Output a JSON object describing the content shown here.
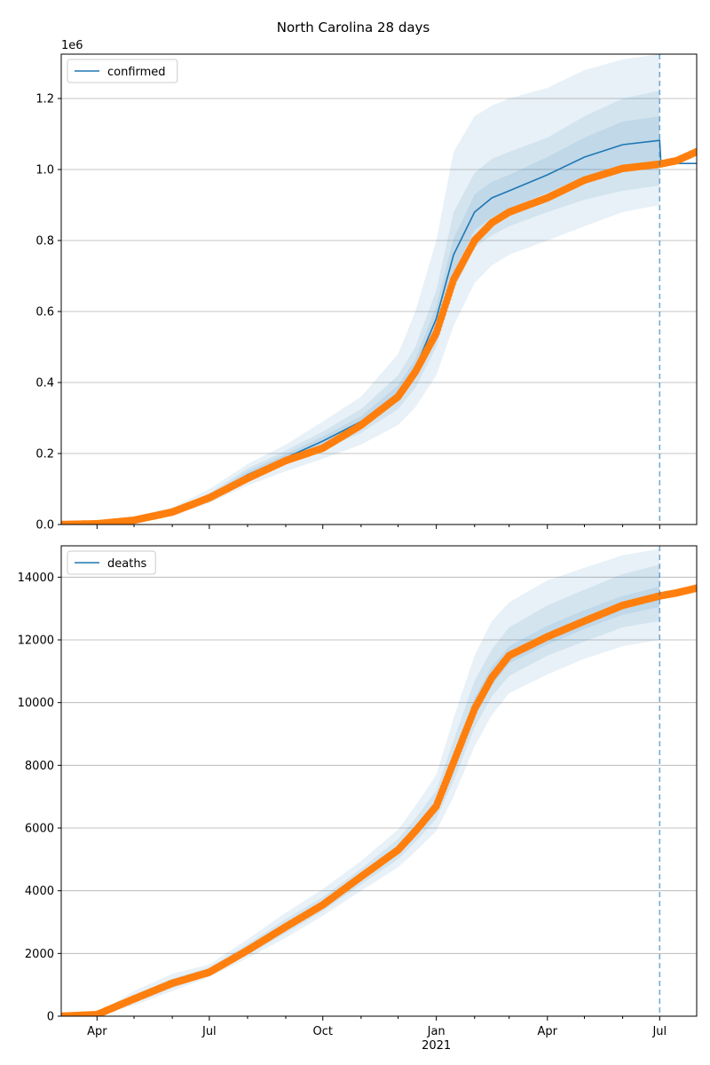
{
  "title": "North Carolina 28 days",
  "chart_data": [
    {
      "type": "line",
      "legend": "confirmed",
      "legend_position": "top-left",
      "grid": "horizontal",
      "offset_label": "1e6",
      "y_tick_labels": [
        "0.0",
        "0.2",
        "0.4",
        "0.6",
        "0.8",
        "1.0",
        "1.2"
      ],
      "y_ticks": [
        0,
        200000,
        400000,
        600000,
        800000,
        1000000,
        1200000
      ],
      "ylim": [
        0,
        1325000
      ],
      "xlim": [
        "2020-03-03",
        "2021-07-31"
      ],
      "forecast_start": "2021-07-01",
      "series": [
        {
          "name": "confirmed",
          "role": "model median",
          "color": "#1f77b4",
          "x": [
            "2020-03-03",
            "2020-04-01",
            "2020-05-01",
            "2020-06-01",
            "2020-07-01",
            "2020-08-01",
            "2020-09-01",
            "2020-10-01",
            "2020-11-01",
            "2020-12-01",
            "2020-12-15",
            "2021-01-01",
            "2021-01-15",
            "2021-02-01",
            "2021-02-15",
            "2021-03-01",
            "2021-04-01",
            "2021-05-01",
            "2021-06-01",
            "2021-07-01",
            "2021-07-02",
            "2021-07-31"
          ],
          "y": [
            500,
            6000,
            15000,
            35000,
            78000,
            140000,
            188000,
            235000,
            290000,
            370000,
            440000,
            580000,
            760000,
            880000,
            920000,
            940000,
            985000,
            1035000,
            1070000,
            1082000,
            1017000,
            1017000
          ]
        },
        {
          "name": "",
          "role": "observed",
          "color": "#ff7f0e",
          "x": [
            "2020-03-03",
            "2020-04-01",
            "2020-05-01",
            "2020-06-01",
            "2020-07-01",
            "2020-08-01",
            "2020-09-01",
            "2020-10-01",
            "2020-11-01",
            "2020-12-01",
            "2020-12-15",
            "2021-01-01",
            "2021-01-15",
            "2021-02-01",
            "2021-02-15",
            "2021-03-01",
            "2021-04-01",
            "2021-05-01",
            "2021-06-01",
            "2021-07-01",
            "2021-07-15",
            "2021-07-31"
          ],
          "y": [
            0,
            2000,
            12000,
            35000,
            75000,
            130000,
            180000,
            215000,
            280000,
            360000,
            430000,
            540000,
            690000,
            800000,
            850000,
            880000,
            920000,
            970000,
            1003000,
            1015000,
            1025000,
            1050000
          ]
        }
      ],
      "bands": {
        "x": [
          "2020-03-03",
          "2020-04-01",
          "2020-05-01",
          "2020-06-01",
          "2020-07-01",
          "2020-08-01",
          "2020-09-01",
          "2020-10-01",
          "2020-11-01",
          "2020-12-01",
          "2020-12-15",
          "2021-01-01",
          "2021-01-15",
          "2021-02-01",
          "2021-02-15",
          "2021-03-01",
          "2021-04-01",
          "2021-05-01",
          "2021-06-01",
          "2021-07-01"
        ],
        "bounds": [
          {
            "lower": [
              0,
              4000,
              10000,
              25000,
              60000,
              110000,
              150000,
              185000,
              225000,
              280000,
              330000,
              420000,
              560000,
              680000,
              730000,
              760000,
              800000,
              840000,
              880000,
              900000
            ],
            "upper": [
              1000,
              8000,
              22000,
              48000,
              100000,
              170000,
              225000,
              290000,
              360000,
              480000,
              600000,
              800000,
              1050000,
              1150000,
              1180000,
              1200000,
              1230000,
              1280000,
              1310000,
              1325000
            ]
          },
          {
            "lower": [
              0,
              5000,
              12000,
              30000,
              68000,
              122000,
              168000,
              210000,
              258000,
              325000,
              385000,
              500000,
              660000,
              780000,
              815000,
              840000,
              880000,
              915000,
              940000,
              955000
            ],
            "upper": [
              800,
              7000,
              18000,
              42000,
              88000,
              158000,
              208000,
              262000,
              325000,
              420000,
              500000,
              660000,
              880000,
              990000,
              1030000,
              1050000,
              1090000,
              1150000,
              1200000,
              1222000
            ]
          },
          {
            "lower": [
              200,
              5500,
              13500,
              32000,
              72000,
              130000,
              178000,
              222000,
              275000,
              348000,
              415000,
              545000,
              710000,
              830000,
              865000,
              890000,
              935000,
              980000,
              1005000,
              1020000
            ],
            "upper": [
              600,
              6500,
              16500,
              38000,
              83000,
              150000,
              198000,
              248000,
              305000,
              392000,
              465000,
              615000,
              805000,
              930000,
              965000,
              985000,
              1035000,
              1090000,
              1135000,
              1150000
            ]
          }
        ]
      }
    },
    {
      "type": "line",
      "legend": "deaths",
      "legend_position": "top-left",
      "grid": "horizontal",
      "y_tick_labels": [
        "0",
        "2000",
        "4000",
        "6000",
        "8000",
        "10000",
        "12000",
        "14000"
      ],
      "y_ticks": [
        0,
        2000,
        4000,
        6000,
        8000,
        10000,
        12000,
        14000
      ],
      "ylim": [
        0,
        15000
      ],
      "xlim": [
        "2020-03-03",
        "2021-07-31"
      ],
      "forecast_start": "2021-07-01",
      "x_tick_labels": [
        "Apr",
        "Jul",
        "Oct",
        "Jan",
        "Apr",
        "Jul"
      ],
      "x_ticks": [
        "2020-04-01",
        "2020-07-01",
        "2020-10-01",
        "2021-01-01",
        "2021-04-01",
        "2021-07-01"
      ],
      "x_year_label": "2021",
      "series": [
        {
          "name": "",
          "role": "observed",
          "color": "#ff7f0e",
          "x": [
            "2020-03-03",
            "2020-04-01",
            "2020-05-01",
            "2020-06-01",
            "2020-07-01",
            "2020-08-01",
            "2020-09-01",
            "2020-10-01",
            "2020-11-01",
            "2020-12-01",
            "2020-12-15",
            "2021-01-01",
            "2021-01-15",
            "2021-02-01",
            "2021-02-15",
            "2021-03-01",
            "2021-04-01",
            "2021-05-01",
            "2021-06-01",
            "2021-07-01",
            "2021-07-15",
            "2021-07-31"
          ],
          "y": [
            0,
            50,
            550,
            1050,
            1400,
            2100,
            2850,
            3550,
            4450,
            5300,
            5900,
            6700,
            8100,
            9800,
            10800,
            11500,
            12100,
            12600,
            13100,
            13400,
            13500,
            13650
          ]
        }
      ],
      "bands": {
        "x": [
          "2020-03-03",
          "2020-04-01",
          "2020-05-01",
          "2020-06-01",
          "2020-07-01",
          "2020-08-01",
          "2020-09-01",
          "2020-10-01",
          "2020-11-01",
          "2020-12-01",
          "2020-12-15",
          "2021-01-01",
          "2021-01-15",
          "2021-02-01",
          "2021-02-15",
          "2021-03-01",
          "2021-04-01",
          "2021-05-01",
          "2021-06-01",
          "2021-07-01"
        ],
        "bounds": [
          {
            "lower": [
              0,
              20,
              350,
              800,
              1250,
              1850,
              2500,
              3200,
              4000,
              4750,
              5250,
              5900,
              7000,
              8600,
              9600,
              10300,
              10900,
              11400,
              11800,
              12000
            ],
            "upper": [
              50,
              100,
              800,
              1350,
              1650,
              2450,
              3300,
              4050,
              4950,
              5950,
              6700,
              7700,
              9500,
              11500,
              12600,
              13200,
              13900,
              14300,
              14700,
              14900
            ]
          },
          {
            "lower": [
              0,
              30,
              420,
              900,
              1300,
              1950,
              2650,
              3350,
              4200,
              5000,
              5550,
              6300,
              7500,
              9200,
              10200,
              10850,
              11500,
              11950,
              12400,
              12600
            ],
            "upper": [
              30,
              80,
              680,
              1200,
              1550,
              2300,
              3100,
              3800,
              4700,
              5650,
              6300,
              7200,
              8800,
              10700,
              11700,
              12400,
              13100,
              13600,
              14100,
              14400
            ]
          },
          {
            "lower": [
              0,
              40,
              480,
              980,
              1350,
              2030,
              2750,
              3450,
              4330,
              5150,
              5750,
              6550,
              7850,
              9550,
              10550,
              11250,
              11850,
              12350,
              12800,
              13050
            ],
            "upper": [
              20,
              65,
              600,
              1120,
              1480,
              2200,
              2950,
              3650,
              4570,
              5450,
              6050,
              6900,
              8400,
              10150,
              11150,
              11800,
              12450,
              12950,
              13400,
              13700
            ]
          }
        ]
      }
    }
  ]
}
